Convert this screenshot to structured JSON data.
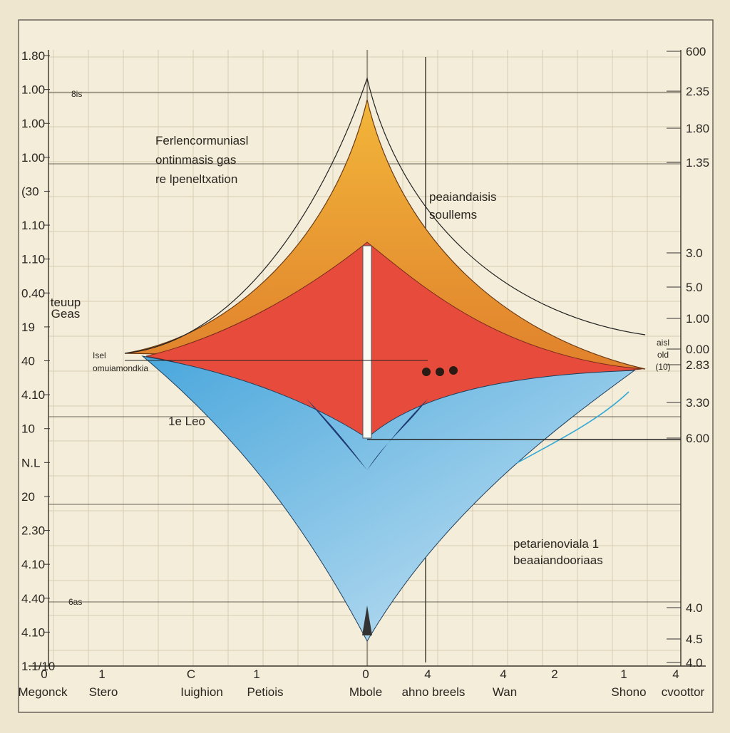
{
  "left_axis": [
    "1.80",
    "1.00",
    "1.00",
    "1.00",
    "(30",
    "1.10",
    "1.10",
    "0.40",
    "19",
    "40",
    "4.10",
    "10",
    "N.L",
    "20",
    "2.30",
    "4.10",
    "4.40",
    "4.10",
    "1.1/10"
  ],
  "right_axis": [
    "600",
    "2.35",
    "1.80",
    "1.35",
    "3.0",
    "5.0",
    "1.00",
    "0.00",
    "2.83",
    "3.30",
    "6.00",
    "4.0",
    "4.5",
    "4.0"
  ],
  "bottom_ticks": [
    "0",
    "1",
    "C",
    "1",
    "0",
    "4",
    "4",
    "2",
    "1",
    "4"
  ],
  "bottom_labels": [
    "Megonck",
    "Stero",
    "Iuighion",
    "Petiois",
    "Mbole",
    "ahno breels",
    "Wan",
    "Shono",
    "cvoottor"
  ],
  "annotations": {
    "top_left": [
      "Ferlencormuniasl",
      "ontinmasis gas",
      "re lpeneltxation"
    ],
    "top_right": [
      "peaiandaisis",
      "soullems"
    ],
    "bottom_right": [
      "petarienoviala 1",
      "beaaiandooriaas"
    ],
    "left_small": [
      "teuup",
      "Geas"
    ],
    "left_tip": [
      "Isel",
      "omuiamondkia"
    ],
    "left_mid": "1e Leo",
    "left_low": "6as",
    "left_top": "8is",
    "right_tip": [
      "aisl",
      "old",
      "(10)"
    ]
  }
}
